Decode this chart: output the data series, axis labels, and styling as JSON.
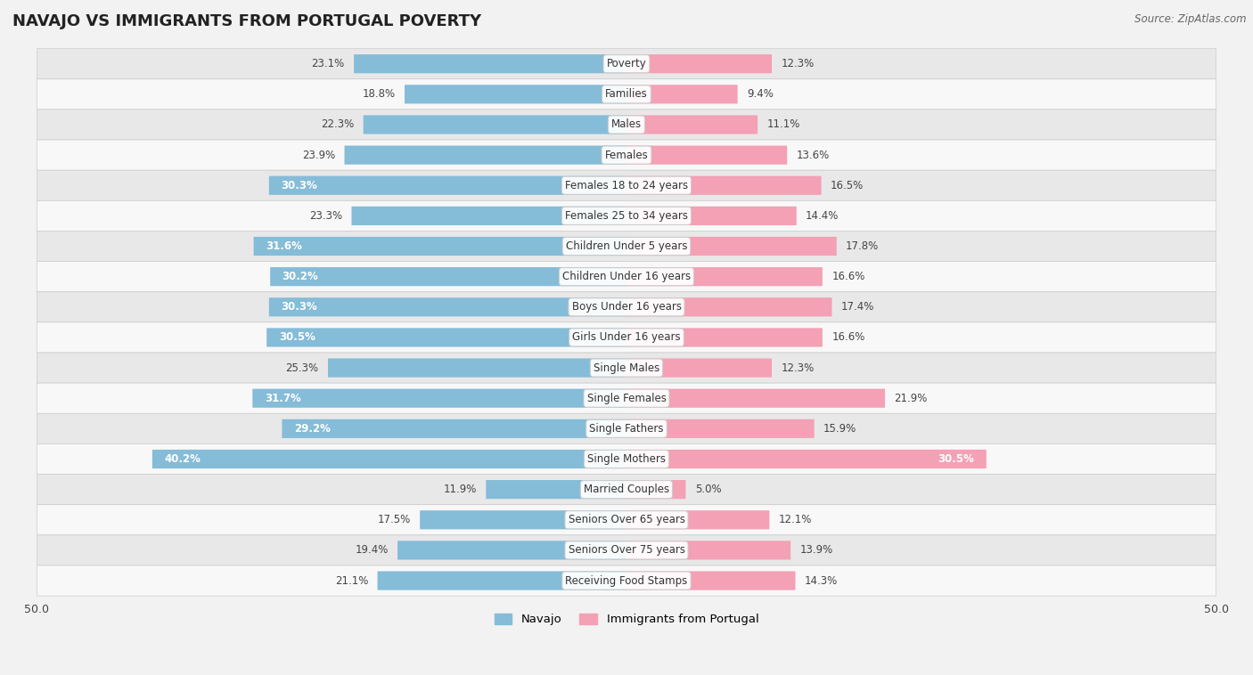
{
  "title": "NAVAJO VS IMMIGRANTS FROM PORTUGAL POVERTY",
  "source": "Source: ZipAtlas.com",
  "categories": [
    "Poverty",
    "Families",
    "Males",
    "Females",
    "Females 18 to 24 years",
    "Females 25 to 34 years",
    "Children Under 5 years",
    "Children Under 16 years",
    "Boys Under 16 years",
    "Girls Under 16 years",
    "Single Males",
    "Single Females",
    "Single Fathers",
    "Single Mothers",
    "Married Couples",
    "Seniors Over 65 years",
    "Seniors Over 75 years",
    "Receiving Food Stamps"
  ],
  "navajo_values": [
    23.1,
    18.8,
    22.3,
    23.9,
    30.3,
    23.3,
    31.6,
    30.2,
    30.3,
    30.5,
    25.3,
    31.7,
    29.2,
    40.2,
    11.9,
    17.5,
    19.4,
    21.1
  ],
  "portugal_values": [
    12.3,
    9.4,
    11.1,
    13.6,
    16.5,
    14.4,
    17.8,
    16.6,
    17.4,
    16.6,
    12.3,
    21.9,
    15.9,
    30.5,
    5.0,
    12.1,
    13.9,
    14.3
  ],
  "navajo_color": "#85bcd8",
  "portugal_color": "#f4a0b5",
  "navajo_label": "Navajo",
  "portugal_label": "Immigrants from Portugal",
  "axis_max": 50.0,
  "background_color": "#f2f2f2",
  "row_color_odd": "#e8e8e8",
  "row_color_even": "#f8f8f8",
  "bar_height": 0.58,
  "title_fontsize": 13,
  "label_fontsize": 8.5,
  "value_fontsize": 8.5,
  "inside_label_threshold": 28.0
}
